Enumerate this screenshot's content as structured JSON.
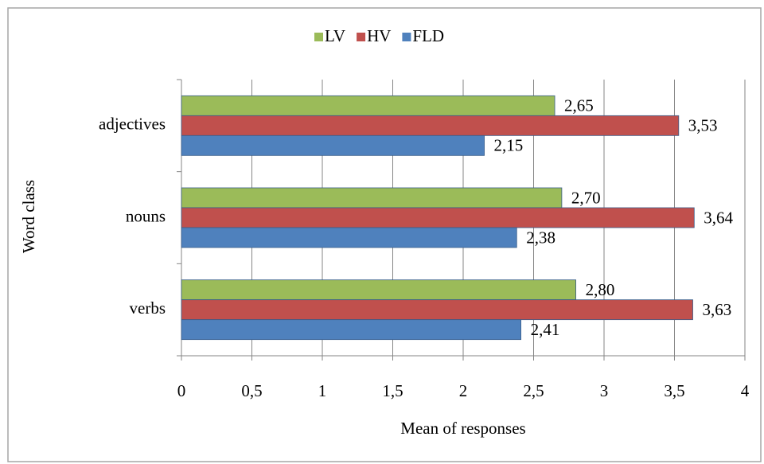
{
  "chart_data": {
    "type": "bar",
    "orientation": "horizontal",
    "x_label": "Mean of responses",
    "y_label": "Word class",
    "categories": [
      "verbs",
      "nouns",
      "adjectives"
    ],
    "series": [
      {
        "name": "LV",
        "color": "#9bbb59",
        "values": [
          2.8,
          2.7,
          2.65
        ],
        "value_labels": [
          "2,80",
          "2,70",
          "2,65"
        ]
      },
      {
        "name": "HV",
        "color": "#c0504d",
        "values": [
          3.63,
          3.64,
          3.53
        ],
        "value_labels": [
          "3,63",
          "3,64",
          "3,53"
        ]
      },
      {
        "name": "FLD",
        "color": "#4f81bd",
        "values": [
          2.41,
          2.38,
          2.15
        ],
        "value_labels": [
          "2,41",
          "2,38",
          "2,15"
        ]
      }
    ],
    "xlim": [
      0,
      4
    ],
    "xticks": [
      0,
      {
        "value": 0.5,
        "label": "0,5"
      },
      1,
      {
        "value": 1.5,
        "label": "1,5"
      },
      2,
      {
        "value": 2.5,
        "label": "2,5"
      },
      3,
      {
        "value": 3.5,
        "label": "3,5"
      },
      4
    ],
    "grid": true,
    "legend": "top"
  }
}
